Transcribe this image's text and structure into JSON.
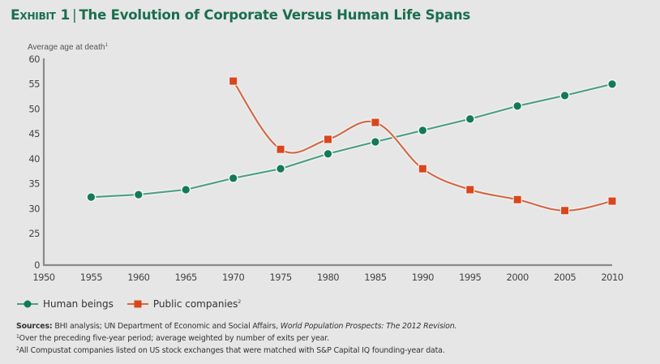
{
  "header": {
    "exhibit": "Exhibit 1",
    "separator": "|",
    "title": "The Evolution of Corporate Versus Human Life Spans"
  },
  "colors": {
    "human": "#137a56",
    "human_line": "#4f9f84",
    "companies": "#d9461b",
    "companies_line": "#d06a48",
    "axis": "#8a8a8a",
    "background": "#e6e6e6",
    "title": "#1a6e4e"
  },
  "chart_data": {
    "type": "line",
    "title": "The Evolution of Corporate Versus Human Life Spans",
    "xlabel": "",
    "ylabel": "Average age at death",
    "ylabel_footnote": "1",
    "x": [
      1955,
      1960,
      1965,
      1970,
      1975,
      1980,
      1985,
      1990,
      1995,
      2000,
      2005,
      2010
    ],
    "x_ticks": [
      "1950",
      "1955",
      "1960",
      "1965",
      "1970",
      "1975",
      "1980",
      "1985",
      "1990",
      "1995",
      "2000",
      "2005",
      "2010"
    ],
    "y_ticks": [
      "0",
      "25",
      "30",
      "35",
      "40",
      "45",
      "50",
      "55",
      "60"
    ],
    "xlim": [
      1950,
      2010
    ],
    "ylim": [
      0,
      60
    ],
    "y_axis_break": "between 0 and 25",
    "grid": false,
    "legend_position": "bottom-left",
    "series": [
      {
        "name": "Human beings",
        "marker": "circle",
        "x": [
          1955,
          1960,
          1965,
          1970,
          1975,
          1980,
          1985,
          1990,
          1995,
          2000,
          2005,
          2010
        ],
        "values": [
          32.3,
          32.8,
          33.8,
          36.1,
          38.0,
          41.0,
          43.4,
          45.7,
          48.0,
          50.6,
          52.7,
          55.0
        ]
      },
      {
        "name": "Public companies",
        "footnote": "2",
        "marker": "square",
        "x": [
          1970,
          1975,
          1980,
          1985,
          1990,
          1995,
          2000,
          2005,
          2010
        ],
        "values": [
          55.6,
          41.9,
          43.9,
          47.3,
          38.0,
          33.8,
          31.8,
          29.6,
          31.5
        ]
      }
    ]
  },
  "legend": {
    "items": [
      {
        "label": "Human beings",
        "sup": ""
      },
      {
        "label": "Public companies",
        "sup": "2"
      }
    ]
  },
  "notes": {
    "sources_label": "Sources:",
    "sources_text": " BHI analysis; UN Department of Economic and Social Affairs, ",
    "sources_italic": "World Population Prospects: The 2012 Revision.",
    "note1_mark": "1",
    "note1": "Over the preceding five-year period; average weighted by number of exits per year.",
    "note2_mark": "2",
    "note2": "All Compustat companies listed on US stock exchanges that were matched with S&P Capital IQ founding-year data."
  }
}
